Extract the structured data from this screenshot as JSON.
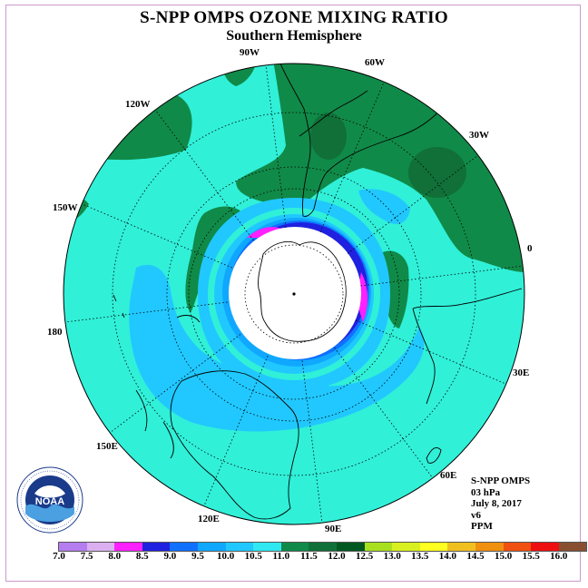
{
  "title": "S-NPP OMPS OZONE MIXING RATIO",
  "subtitle": "Southern Hemisphere",
  "longitude_labels": [
    {
      "text": "0",
      "name": "lon-0"
    },
    {
      "text": "30E",
      "name": "lon-30e"
    },
    {
      "text": "60E",
      "name": "lon-60e"
    },
    {
      "text": "90E",
      "name": "lon-90e"
    },
    {
      "text": "120E",
      "name": "lon-120e"
    },
    {
      "text": "150E",
      "name": "lon-150e"
    },
    {
      "text": "180",
      "name": "lon-180"
    },
    {
      "text": "150W",
      "name": "lon-150w"
    },
    {
      "text": "120W",
      "name": "lon-120w"
    },
    {
      "text": "90W",
      "name": "lon-90w"
    },
    {
      "text": "60W",
      "name": "lon-60w"
    },
    {
      "text": "30W",
      "name": "lon-30w"
    }
  ],
  "info": {
    "instrument": "S-NPP OMPS",
    "level": "03 hPa",
    "date": "July 8, 2017",
    "version": "v6",
    "units": "PPM"
  },
  "logo": {
    "text": "NOAA",
    "icon": "noaa-logo-icon"
  },
  "colorbar": {
    "ticks": [
      "7.0",
      "7.5",
      "8.0",
      "8.5",
      "9.0",
      "9.5",
      "10.0",
      "10.5",
      "11.0",
      "11.5",
      "12.0",
      "12.5",
      "13.0",
      "13.5",
      "14.0",
      "14.5",
      "15.0",
      "15.5",
      "16.0"
    ],
    "colors": [
      "#b57ef0",
      "#dcb0f0",
      "#ff20ff",
      "#2020e0",
      "#1070ff",
      "#10a8ff",
      "#20c8ff",
      "#30e8f0",
      "#108a48",
      "#107038",
      "#005820",
      "#a8e020",
      "#d8f020",
      "#ffff20",
      "#f0c020",
      "#f09010",
      "#f05010",
      "#ee1010",
      "#885030"
    ]
  }
}
